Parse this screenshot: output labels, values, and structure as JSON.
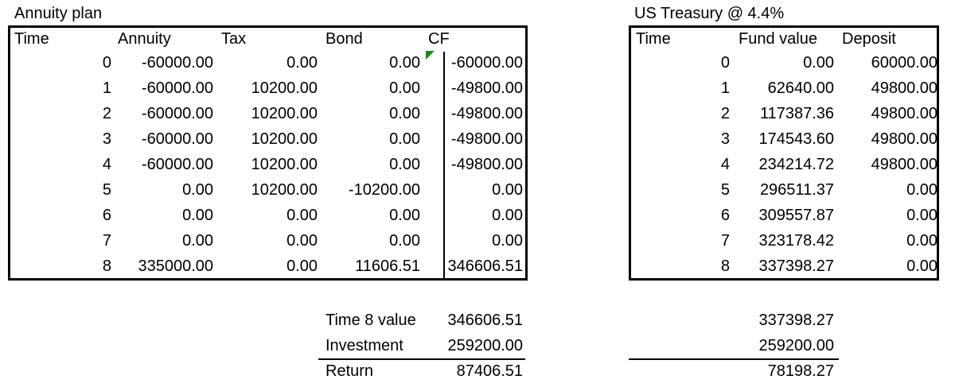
{
  "annuity": {
    "title": "Annuity plan",
    "headers": {
      "time": "Time",
      "annuity": "Annuity",
      "tax": "Tax",
      "bond": "Bond",
      "cf": "CF"
    },
    "rows": [
      {
        "time": "0",
        "annuity": "-60000.00",
        "tax": "0.00",
        "bond": "0.00",
        "cf": "-60000.00"
      },
      {
        "time": "1",
        "annuity": "-60000.00",
        "tax": "10200.00",
        "bond": "0.00",
        "cf": "-49800.00"
      },
      {
        "time": "2",
        "annuity": "-60000.00",
        "tax": "10200.00",
        "bond": "0.00",
        "cf": "-49800.00"
      },
      {
        "time": "3",
        "annuity": "-60000.00",
        "tax": "10200.00",
        "bond": "0.00",
        "cf": "-49800.00"
      },
      {
        "time": "4",
        "annuity": "-60000.00",
        "tax": "10200.00",
        "bond": "0.00",
        "cf": "-49800.00"
      },
      {
        "time": "5",
        "annuity": "0.00",
        "tax": "10200.00",
        "bond": "-10200.00",
        "cf": "0.00"
      },
      {
        "time": "6",
        "annuity": "0.00",
        "tax": "0.00",
        "bond": "0.00",
        "cf": "0.00"
      },
      {
        "time": "7",
        "annuity": "0.00",
        "tax": "0.00",
        "bond": "0.00",
        "cf": "0.00"
      },
      {
        "time": "8",
        "annuity": "335000.00",
        "tax": "0.00",
        "bond": "11606.51",
        "cf": "346606.51"
      }
    ]
  },
  "treasury": {
    "title": "US Treasury @ 4.4%",
    "headers": {
      "time": "Time",
      "fund": "Fund value",
      "deposit": "Deposit"
    },
    "rows": [
      {
        "time": "0",
        "fund": "0.00",
        "deposit": "60000.00"
      },
      {
        "time": "1",
        "fund": "62640.00",
        "deposit": "49800.00"
      },
      {
        "time": "2",
        "fund": "117387.36",
        "deposit": "49800.00"
      },
      {
        "time": "3",
        "fund": "174543.60",
        "deposit": "49800.00"
      },
      {
        "time": "4",
        "fund": "234214.72",
        "deposit": "49800.00"
      },
      {
        "time": "5",
        "fund": "296511.37",
        "deposit": "0.00"
      },
      {
        "time": "6",
        "fund": "309557.87",
        "deposit": "0.00"
      },
      {
        "time": "7",
        "fund": "323178.42",
        "deposit": "0.00"
      },
      {
        "time": "8",
        "fund": "337398.27",
        "deposit": "0.00"
      }
    ]
  },
  "summary": [
    {
      "label": "Time 8 value",
      "annuity": "346606.51",
      "treasury": "337398.27"
    },
    {
      "label": "Investment",
      "annuity": "259200.00",
      "treasury": "259200.00"
    },
    {
      "label": "Return",
      "annuity": "87406.51",
      "treasury": "78198.27"
    }
  ]
}
